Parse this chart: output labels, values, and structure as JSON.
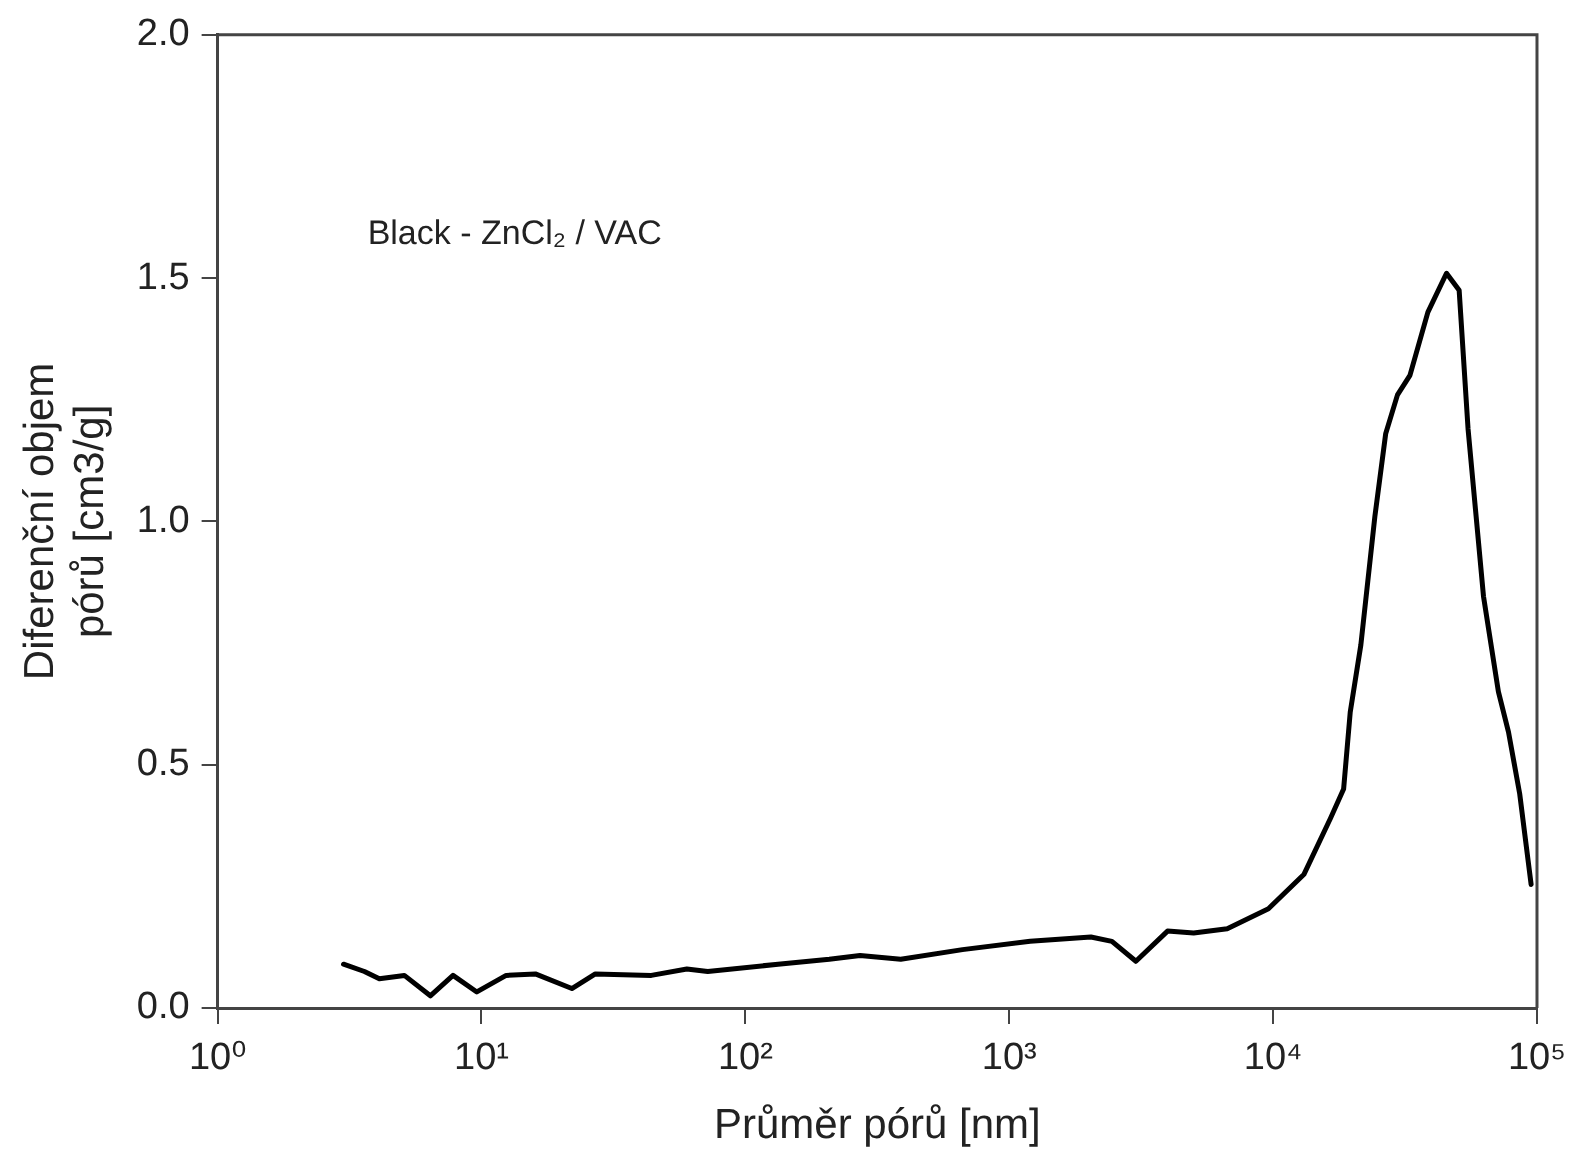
{
  "chart_data": {
    "type": "line",
    "xlabel": "Průměr pórů [nm]",
    "ylabel": "Diferenční objem\npórů [cm3/g]",
    "annotations": [
      "Black - ZnCl₂ / VAC"
    ],
    "x": [
      3.0,
      3.6,
      4.1,
      5.1,
      6.4,
      7.8,
      9.6,
      12.4,
      16,
      22,
      27,
      44,
      60,
      72,
      133,
      208,
      272,
      388,
      665,
      1200,
      2040,
      2450,
      3020,
      3980,
      5000,
      6700,
      9600,
      13100,
      16500,
      18500,
      19600,
      21500,
      24300,
      26700,
      29600,
      33000,
      38600,
      45400,
      50700,
      54800,
      62700,
      71400,
      78000,
      86000,
      95000
    ],
    "series": [
      {
        "color": "#000000",
        "values": [
          0.09,
          0.075,
          0.06,
          0.067,
          0.025,
          0.067,
          0.033,
          0.067,
          0.07,
          0.04,
          0.07,
          0.067,
          0.08,
          0.075,
          0.09,
          0.1,
          0.108,
          0.1,
          0.12,
          0.137,
          0.146,
          0.137,
          0.096,
          0.158,
          0.154,
          0.163,
          0.204,
          0.275,
          0.39,
          0.45,
          0.608,
          0.746,
          1.01,
          1.18,
          1.26,
          1.3,
          1.43,
          1.51,
          1.475,
          1.19,
          0.846,
          0.65,
          0.567,
          0.44,
          0.254
        ]
      }
    ],
    "log": "x",
    "xlim": [
      1,
      100000
    ],
    "xticks": [
      {
        "value": 1,
        "label": "10⁰"
      },
      {
        "value": 10,
        "label": "10¹"
      },
      {
        "value": 100,
        "label": "10²"
      },
      {
        "value": 1000,
        "label": "10³"
      },
      {
        "value": 10000,
        "label": "10⁴"
      },
      {
        "value": 100000,
        "label": "10⁵"
      }
    ],
    "ylim": [
      0,
      2
    ],
    "yticks": [
      {
        "value": 0,
        "label": "0.0"
      },
      {
        "value": 0.5,
        "label": "0.5"
      },
      {
        "value": 1,
        "label": "1.0"
      },
      {
        "value": 1.5,
        "label": "1.5"
      },
      {
        "value": 2,
        "label": "2.0"
      }
    ],
    "grid": false,
    "legend": false,
    "marker": "none",
    "line_style": "solid"
  }
}
